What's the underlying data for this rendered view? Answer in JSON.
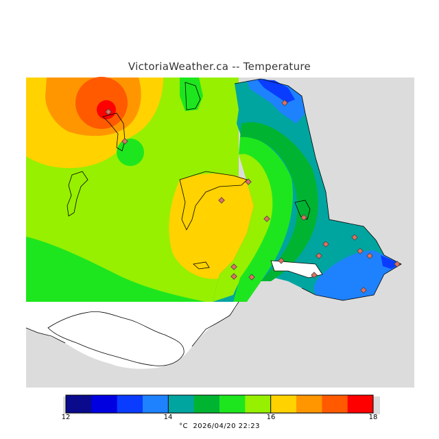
{
  "title": "VictoriaWeather.ca -- Temperature",
  "legend": {
    "colors": [
      "#0a0a8c",
      "#0000e0",
      "#0a3cff",
      "#1e82ff",
      "#00a5a0",
      "#00b432",
      "#1ee61e",
      "#96f000",
      "#ffd200",
      "#ff9600",
      "#ff5a00",
      "#ff0000"
    ],
    "ticks": [
      "12",
      "14",
      "16",
      "18"
    ],
    "unit_label": "°C",
    "timestamp": "2026/04/20 22:23"
  },
  "colors": {
    "background_land": "#dcdcdc",
    "water_white": "#ffffff",
    "coastline": "#000000",
    "station_marker": "#e07060"
  }
}
